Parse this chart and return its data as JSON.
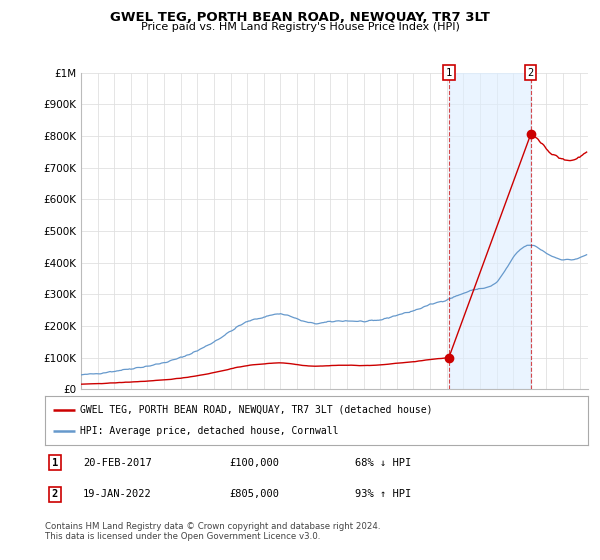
{
  "title": "GWEL TEG, PORTH BEAN ROAD, NEWQUAY, TR7 3LT",
  "subtitle": "Price paid vs. HM Land Registry's House Price Index (HPI)",
  "ylim": [
    0,
    1000000
  ],
  "yticks": [
    0,
    100000,
    200000,
    300000,
    400000,
    500000,
    600000,
    700000,
    800000,
    900000,
    1000000
  ],
  "ytick_labels": [
    "£0",
    "£100K",
    "£200K",
    "£300K",
    "£400K",
    "£500K",
    "£600K",
    "£700K",
    "£800K",
    "£900K",
    "£1M"
  ],
  "xlim_start": 1995.0,
  "xlim_end": 2025.5,
  "hpi_color": "#6699cc",
  "property_color": "#cc0000",
  "shade_color": "#ddeeff",
  "sale1_year": 2017.13,
  "sale1_price": 100000,
  "sale2_year": 2022.05,
  "sale2_price": 805000,
  "legend_property": "GWEL TEG, PORTH BEAN ROAD, NEWQUAY, TR7 3LT (detached house)",
  "legend_hpi": "HPI: Average price, detached house, Cornwall",
  "note1_label": "1",
  "note1_date": "20-FEB-2017",
  "note1_price": "£100,000",
  "note1_hpi": "68% ↓ HPI",
  "note2_label": "2",
  "note2_date": "19-JAN-2022",
  "note2_price": "£805,000",
  "note2_hpi": "93% ↑ HPI",
  "footer": "Contains HM Land Registry data © Crown copyright and database right 2024.\nThis data is licensed under the Open Government Licence v3.0.",
  "background_color": "#ffffff",
  "grid_color": "#e0e0e0"
}
